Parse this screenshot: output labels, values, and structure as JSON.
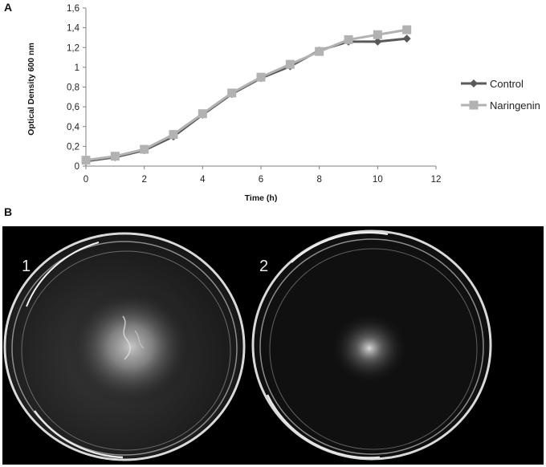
{
  "panels": {
    "a_label": "A",
    "b_label": "B"
  },
  "chart_data": {
    "type": "line",
    "title": "",
    "xlabel": "Time (h)",
    "ylabel": "Optical Density 600 nm",
    "xlim": [
      0,
      12
    ],
    "ylim": [
      0,
      1.6
    ],
    "x_ticks": [
      0,
      2,
      4,
      6,
      8,
      10,
      12
    ],
    "y_ticks": [
      0,
      0.2,
      0.4,
      0.6,
      0.8,
      1.0,
      1.2,
      1.4,
      1.6
    ],
    "x_tick_labels": [
      "0",
      "2",
      "4",
      "6",
      "8",
      "10",
      "12"
    ],
    "y_tick_labels": [
      "0",
      "0,2",
      "0,4",
      "0,6",
      "0,8",
      "1",
      "1,2",
      "1,4",
      "1,6"
    ],
    "grid": false,
    "legend_position": "right",
    "series": [
      {
        "name": "Control",
        "color": "#595959",
        "marker": "diamond",
        "x": [
          0,
          1,
          2,
          3,
          4,
          5,
          6,
          7,
          8,
          9,
          10,
          11
        ],
        "y": [
          0.05,
          0.09,
          0.16,
          0.3,
          0.52,
          0.73,
          0.89,
          1.01,
          1.17,
          1.26,
          1.26,
          1.29
        ]
      },
      {
        "name": "Naringenin",
        "color": "#b2b2b2",
        "marker": "square",
        "x": [
          0,
          1,
          2,
          3,
          4,
          5,
          6,
          7,
          8,
          9,
          10,
          11
        ],
        "y": [
          0.06,
          0.1,
          0.17,
          0.32,
          0.53,
          0.74,
          0.9,
          1.03,
          1.16,
          1.28,
          1.33,
          1.38
        ]
      }
    ]
  },
  "photo": {
    "dish_labels": [
      "1",
      "2"
    ]
  }
}
